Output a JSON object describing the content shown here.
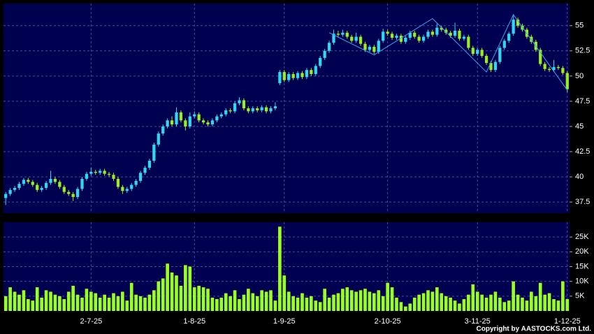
{
  "chart_data": [
    {
      "type": "candlestick",
      "categories": [
        null,
        null,
        null,
        null,
        null,
        null,
        null,
        null,
        null,
        null,
        null,
        null,
        null,
        null,
        null,
        null,
        null,
        null,
        null,
        "2-7-25",
        null,
        null,
        null,
        null,
        null,
        null,
        null,
        null,
        null,
        null,
        null,
        null,
        null,
        null,
        null,
        null,
        null,
        null,
        null,
        null,
        null,
        null,
        "1-8-25",
        null,
        null,
        null,
        null,
        null,
        null,
        null,
        null,
        null,
        null,
        null,
        null,
        null,
        null,
        null,
        null,
        null,
        null,
        null,
        "1-9-25",
        null,
        null,
        null,
        null,
        null,
        null,
        null,
        null,
        null,
        null,
        null,
        null,
        null,
        null,
        null,
        null,
        null,
        null,
        null,
        null,
        null,
        null,
        "2-10-25",
        null,
        null,
        null,
        null,
        null,
        null,
        null,
        null,
        null,
        null,
        null,
        null,
        null,
        null,
        null,
        null,
        null,
        null,
        null,
        "3-11-25",
        null,
        null,
        null,
        null,
        null,
        null,
        null,
        null,
        null,
        null,
        null,
        null,
        null,
        null,
        null,
        null,
        null,
        null,
        null,
        "1-12-25"
      ],
      "open": [
        37.9,
        38.3,
        38.7,
        38.9,
        39.3,
        39.7,
        39.5,
        39.2,
        38.7,
        38.9,
        39.4,
        39.8,
        39.5,
        39.0,
        38.5,
        38.3,
        38.0,
        38.8,
        39.8,
        40.3,
        40.5,
        40.4,
        40.6,
        40.3,
        40.2,
        39.8,
        39.0,
        38.6,
        38.8,
        39.2,
        39.6,
        40.4,
        40.9,
        41.6,
        43.2,
        44.3,
        45.0,
        45.6,
        45.2,
        46.4,
        45.6,
        45.0,
        46.0,
        46.2,
        45.6,
        45.4,
        45.2,
        45.6,
        46.0,
        46.2,
        46.6,
        46.5,
        47.3,
        47.6,
        46.8,
        46.5,
        46.8,
        46.6,
        46.9,
        46.5,
        46.8,
        49.3,
        50.4,
        49.6,
        50.2,
        49.8,
        50.3,
        49.9,
        50.6,
        50.2,
        51.0,
        51.8,
        52.5,
        53.3,
        54.2,
        54.1,
        54.3,
        53.9,
        53.5,
        53.9,
        53.2,
        52.6,
        52.9,
        52.4,
        53.5,
        54.4,
        54.2,
        53.8,
        54.0,
        53.4,
        53.8,
        54.3,
        53.9,
        53.5,
        53.9,
        54.4,
        54.1,
        54.8,
        54.6,
        54.3,
        54.0,
        54.5,
        53.7,
        53.9,
        52.8,
        52.2,
        52.6,
        52.0,
        51.3,
        50.6,
        51.4,
        52.8,
        53.5,
        54.2,
        55.6,
        55.0,
        54.6,
        53.9,
        53.4,
        52.6,
        51.2,
        50.7,
        50.6,
        50.9,
        50.8,
        50.3
      ],
      "high": [
        38.5,
        38.9,
        39.1,
        39.5,
        39.9,
        39.9,
        39.7,
        39.4,
        39.1,
        39.6,
        40.6,
        40.0,
        39.7,
        39.2,
        38.7,
        38.5,
        39.0,
        40.0,
        40.5,
        40.9,
        40.7,
        40.8,
        40.8,
        40.5,
        40.4,
        40.0,
        39.2,
        39.0,
        39.4,
        39.8,
        40.6,
        41.1,
        41.8,
        43.4,
        44.5,
        45.2,
        45.8,
        46.0,
        46.9,
        46.6,
        45.8,
        46.4,
        46.5,
        46.4,
        45.8,
        45.6,
        45.8,
        46.2,
        46.4,
        46.8,
        46.8,
        47.5,
        47.9,
        47.8,
        47.0,
        47.0,
        47.0,
        47.1,
        47.1,
        47.0,
        47.4,
        50.6,
        50.6,
        50.4,
        50.4,
        50.5,
        50.5,
        50.8,
        50.8,
        51.2,
        52.0,
        52.7,
        53.5,
        54.6,
        54.5,
        54.6,
        54.5,
        54.1,
        54.3,
        54.1,
        53.4,
        53.1,
        53.1,
        53.7,
        54.7,
        54.6,
        54.4,
        54.2,
        54.2,
        54.0,
        54.5,
        54.5,
        54.1,
        54.1,
        54.6,
        54.6,
        55.2,
        55.0,
        54.8,
        54.5,
        55.3,
        54.7,
        54.1,
        54.1,
        53.0,
        52.8,
        52.8,
        52.2,
        51.5,
        51.6,
        53.0,
        53.7,
        54.4,
        56.0,
        55.8,
        55.2,
        54.8,
        54.1,
        53.6,
        52.8,
        51.4,
        50.9,
        51.6,
        51.1,
        51.0,
        50.5
      ],
      "low": [
        37.2,
        38.1,
        38.5,
        38.7,
        39.1,
        39.3,
        39.0,
        38.5,
        38.5,
        38.7,
        39.2,
        39.3,
        38.8,
        38.3,
        38.1,
        37.6,
        37.8,
        38.6,
        39.6,
        40.1,
        40.2,
        40.2,
        40.1,
        40.0,
        39.6,
        38.8,
        38.3,
        38.4,
        38.6,
        39.0,
        39.4,
        40.2,
        40.7,
        41.4,
        43.0,
        44.1,
        44.8,
        45.0,
        45.0,
        45.4,
        44.6,
        44.8,
        45.8,
        45.4,
        45.2,
        45.0,
        45.0,
        45.4,
        45.8,
        46.0,
        46.3,
        46.3,
        47.1,
        46.6,
        46.3,
        46.3,
        46.4,
        46.4,
        46.3,
        46.3,
        46.6,
        49.1,
        49.4,
        49.4,
        49.6,
        49.6,
        49.7,
        49.7,
        50.0,
        50.0,
        50.8,
        51.6,
        52.3,
        53.1,
        53.9,
        53.9,
        53.7,
        53.3,
        53.3,
        53.0,
        52.4,
        52.4,
        52.2,
        52.2,
        53.3,
        54.0,
        53.6,
        53.6,
        53.2,
        53.2,
        53.6,
        53.7,
        53.3,
        53.3,
        53.7,
        53.9,
        53.9,
        54.4,
        54.1,
        53.8,
        53.8,
        53.5,
        53.5,
        52.6,
        52.0,
        52.0,
        51.8,
        51.1,
        50.4,
        50.4,
        51.2,
        52.6,
        53.3,
        54.0,
        54.8,
        54.4,
        53.7,
        53.2,
        52.4,
        51.0,
        50.5,
        50.4,
        50.4,
        50.6,
        50.1,
        48.4
      ],
      "close": [
        38.3,
        38.7,
        38.9,
        39.3,
        39.7,
        39.5,
        39.2,
        38.7,
        38.9,
        39.4,
        39.8,
        39.5,
        39.0,
        38.5,
        38.3,
        38.0,
        38.8,
        39.8,
        40.3,
        40.5,
        40.4,
        40.6,
        40.3,
        40.2,
        39.8,
        39.0,
        38.6,
        38.8,
        39.2,
        39.6,
        40.4,
        40.9,
        41.6,
        43.2,
        44.3,
        45.0,
        45.6,
        45.2,
        46.4,
        45.6,
        45.0,
        46.0,
        46.2,
        45.6,
        45.4,
        45.2,
        45.6,
        46.0,
        46.2,
        46.6,
        46.5,
        47.3,
        47.6,
        46.8,
        46.5,
        46.8,
        46.6,
        46.9,
        46.5,
        46.8,
        47.0,
        50.4,
        49.6,
        50.2,
        49.8,
        50.3,
        49.9,
        50.6,
        50.2,
        51.0,
        51.8,
        52.5,
        53.3,
        54.2,
        54.1,
        54.3,
        53.9,
        53.5,
        53.9,
        53.2,
        52.6,
        52.9,
        52.4,
        53.5,
        54.4,
        54.2,
        53.8,
        54.0,
        53.4,
        53.8,
        54.3,
        53.9,
        53.5,
        53.9,
        54.4,
        54.1,
        54.8,
        54.6,
        54.3,
        54.0,
        54.5,
        53.7,
        53.9,
        52.8,
        52.2,
        52.6,
        52.0,
        51.3,
        50.6,
        51.4,
        52.8,
        53.5,
        54.2,
        55.6,
        55.0,
        54.6,
        53.9,
        53.4,
        52.6,
        51.2,
        50.7,
        50.6,
        50.9,
        50.8,
        50.3,
        48.7
      ],
      "up_color": "#33d6f0",
      "down_color": "#99ee22",
      "zigzag": {
        "color": "#33a8f0",
        "x": [
          72,
          82,
          95,
          107,
          113,
          125
        ],
        "values": [
          54.3,
          52.1,
          55.7,
          50.4,
          56.1,
          48.6
        ]
      },
      "ylim": [
        36.4,
        57.2
      ],
      "yticks": [
        37.5,
        40,
        42.5,
        45,
        47.5,
        50,
        52.5,
        55
      ],
      "grid": true
    },
    {
      "type": "bar",
      "values": [
        5000,
        8000,
        6500,
        5500,
        7000,
        4000,
        3500,
        8000,
        4500,
        7000,
        6500,
        5500,
        5000,
        4000,
        6500,
        8500,
        5500,
        4500,
        7500,
        6500,
        6000,
        4500,
        5500,
        4500,
        6000,
        5000,
        6500,
        3500,
        9500,
        5500,
        5000,
        4500,
        5500,
        7000,
        10000,
        11000,
        16000,
        13000,
        12000,
        8500,
        15500,
        15000,
        8000,
        8500,
        8000,
        7500,
        4500,
        4000,
        4500,
        6000,
        5000,
        7000,
        4000,
        5500,
        7500,
        6000,
        5000,
        7000,
        6500,
        7000,
        3500,
        28500,
        12000,
        6500,
        5000,
        4500,
        6000,
        4500,
        5000,
        3500,
        3000,
        7500,
        4500,
        5500,
        6000,
        7500,
        8000,
        7000,
        6500,
        7000,
        7500,
        6500,
        6000,
        7000,
        5000,
        9500,
        8000,
        4500,
        3000,
        1500,
        2500,
        4500,
        5500,
        6000,
        7000,
        6500,
        8000,
        6000,
        5000,
        4500,
        3500,
        2500,
        4000,
        5500,
        9000,
        6500,
        5500,
        4500,
        5500,
        6500,
        4500,
        3000,
        3500,
        10000,
        5500,
        4500,
        3500,
        6500,
        5000,
        9500,
        5500,
        6000,
        4000,
        3500,
        10000,
        4000
      ],
      "color": "#99ff22",
      "ylim": [
        0,
        30000
      ],
      "yticks": [
        {
          "value": 5000,
          "label": "5K"
        },
        {
          "value": 10000,
          "label": "10K"
        },
        {
          "value": 15000,
          "label": "15K"
        },
        {
          "value": 20000,
          "label": "20K"
        },
        {
          "value": 25000,
          "label": "25K"
        }
      ],
      "grid": true
    }
  ],
  "copyright": "Copyright by AASTOCKS.com Ltd."
}
